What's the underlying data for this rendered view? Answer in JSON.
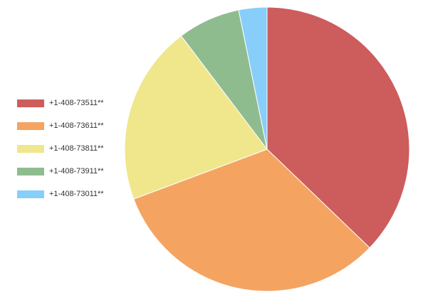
{
  "chart_data": {
    "type": "pie",
    "series": [
      {
        "name": "+1-408-73511**",
        "color": "#cd5c5c",
        "values": [
          37.2
        ]
      },
      {
        "name": "+1-408-73611**",
        "color": "#f4a460",
        "values": [
          32.1
        ]
      },
      {
        "name": "+1-408-73811**",
        "color": "#f0e68c",
        "values": [
          20.4
        ]
      },
      {
        "name": "+1-408-73911**",
        "color": "#8fbc8f",
        "values": [
          7.1
        ]
      },
      {
        "name": "+1-408-73011**",
        "color": "#87cefa",
        "values": [
          3.2
        ]
      }
    ],
    "legend": "left"
  }
}
